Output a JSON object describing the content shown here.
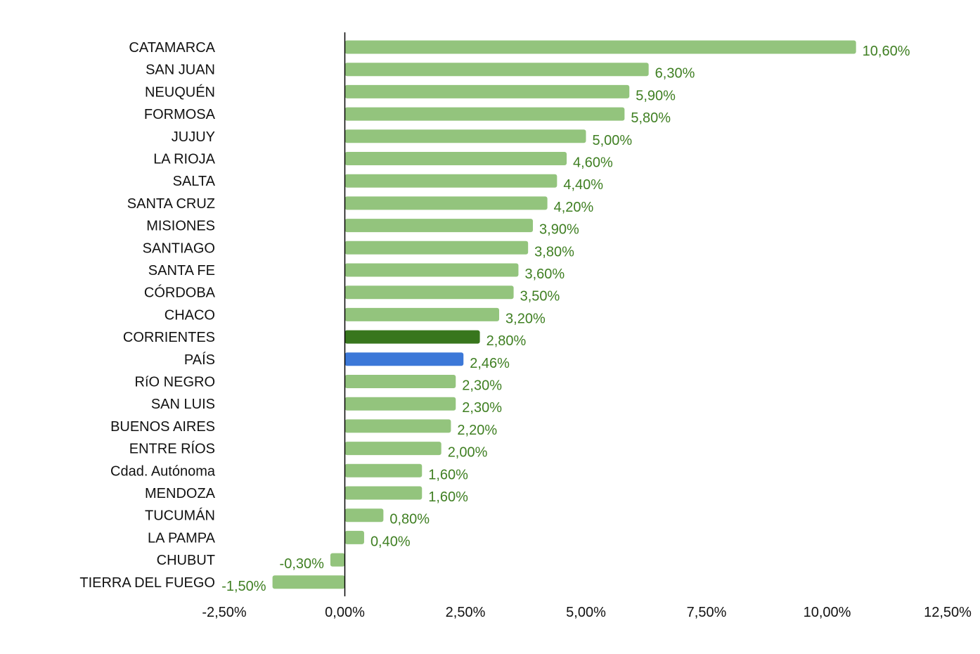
{
  "chart_data": {
    "type": "bar",
    "orientation": "horizontal",
    "title": "",
    "xlabel": "",
    "ylabel": "",
    "xlim": [
      -2.5,
      12.5
    ],
    "ticks": [
      -2.5,
      0,
      2.5,
      5,
      7.5,
      10,
      12.5
    ],
    "tick_labels": [
      "-2,50%",
      "0,00%",
      "2,50%",
      "5,00%",
      "7,50%",
      "10,00%",
      "12,50%"
    ],
    "grid": false,
    "legend": "none",
    "colors": {
      "default": "#93c47d",
      "highlight": "#38761d",
      "national": "#3c78d8",
      "value_label": "#3f7f22",
      "axis": "#000000"
    },
    "bars": [
      {
        "category": "CATAMARCA",
        "value": 10.6,
        "label": "10,60%",
        "color": "default"
      },
      {
        "category": "SAN JUAN",
        "value": 6.3,
        "label": "6,30%",
        "color": "default"
      },
      {
        "category": "NEUQUÉN",
        "value": 5.9,
        "label": "5,90%",
        "color": "default"
      },
      {
        "category": "FORMOSA",
        "value": 5.8,
        "label": "5,80%",
        "color": "default"
      },
      {
        "category": "JUJUY",
        "value": 5.0,
        "label": "5,00%",
        "color": "default"
      },
      {
        "category": "LA RIOJA",
        "value": 4.6,
        "label": "4,60%",
        "color": "default"
      },
      {
        "category": "SALTA",
        "value": 4.4,
        "label": "4,40%",
        "color": "default"
      },
      {
        "category": "SANTA CRUZ",
        "value": 4.2,
        "label": "4,20%",
        "color": "default"
      },
      {
        "category": "MISIONES",
        "value": 3.9,
        "label": "3,90%",
        "color": "default"
      },
      {
        "category": "SANTIAGO",
        "value": 3.8,
        "label": "3,80%",
        "color": "default"
      },
      {
        "category": "SANTA FE",
        "value": 3.6,
        "label": "3,60%",
        "color": "default"
      },
      {
        "category": "CÓRDOBA",
        "value": 3.5,
        "label": "3,50%",
        "color": "default"
      },
      {
        "category": "CHACO",
        "value": 3.2,
        "label": "3,20%",
        "color": "default"
      },
      {
        "category": "CORRIENTES",
        "value": 2.8,
        "label": "2,80%",
        "color": "highlight"
      },
      {
        "category": "PAÍS",
        "value": 2.46,
        "label": "2,46%",
        "color": "national"
      },
      {
        "category": "RíO NEGRO",
        "value": 2.3,
        "label": "2,30%",
        "color": "default"
      },
      {
        "category": "SAN LUIS",
        "value": 2.3,
        "label": "2,30%",
        "color": "default"
      },
      {
        "category": "BUENOS AIRES",
        "value": 2.2,
        "label": "2,20%",
        "color": "default"
      },
      {
        "category": "ENTRE RÍOS",
        "value": 2.0,
        "label": "2,00%",
        "color": "default"
      },
      {
        "category": "Cdad. Autónoma",
        "value": 1.6,
        "label": "1,60%",
        "color": "default"
      },
      {
        "category": "MENDOZA",
        "value": 1.6,
        "label": "1,60%",
        "color": "default"
      },
      {
        "category": "TUCUMÁN",
        "value": 0.8,
        "label": "0,80%",
        "color": "default"
      },
      {
        "category": "LA PAMPA",
        "value": 0.4,
        "label": "0,40%",
        "color": "default"
      },
      {
        "category": "CHUBUT",
        "value": -0.3,
        "label": "-0,30%",
        "color": "default"
      },
      {
        "category": "TIERRA DEL FUEGO",
        "value": -1.5,
        "label": "-1,50%",
        "color": "default"
      }
    ]
  }
}
